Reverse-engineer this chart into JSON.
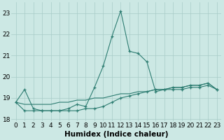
{
  "xlabel": "Humidex (Indice chaleur)",
  "x_values": [
    0,
    1,
    2,
    3,
    4,
    5,
    6,
    7,
    8,
    9,
    10,
    11,
    12,
    13,
    14,
    15,
    16,
    17,
    18,
    19,
    20,
    21,
    22,
    23
  ],
  "line_main": [
    18.8,
    19.4,
    18.5,
    18.4,
    18.4,
    18.4,
    18.5,
    18.7,
    18.6,
    19.5,
    20.5,
    21.9,
    23.1,
    21.2,
    21.1,
    20.7,
    19.3,
    19.4,
    19.4,
    19.4,
    19.5,
    19.5,
    19.6,
    19.4
  ],
  "line_diag": [
    18.8,
    18.7,
    18.7,
    18.7,
    18.7,
    18.8,
    18.8,
    18.9,
    18.9,
    19.0,
    19.0,
    19.1,
    19.2,
    19.2,
    19.3,
    19.3,
    19.4,
    19.4,
    19.5,
    19.5,
    19.6,
    19.6,
    19.7,
    19.4
  ],
  "line_flat": [
    18.8,
    18.4,
    18.4,
    18.4,
    18.4,
    18.4,
    18.4,
    18.4,
    18.5,
    18.5,
    18.6,
    18.8,
    19.0,
    19.1,
    19.2,
    19.3,
    19.4,
    19.4,
    19.5,
    19.5,
    19.6,
    19.6,
    19.7,
    19.4
  ],
  "line_color": "#2e7d72",
  "bg_color": "#cce8e4",
  "grid_color": "#a8ccc8",
  "ylim": [
    17.9,
    23.5
  ],
  "yticks": [
    18,
    19,
    20,
    21,
    22,
    23
  ],
  "tick_fontsize": 6.5,
  "label_fontsize": 7.5
}
